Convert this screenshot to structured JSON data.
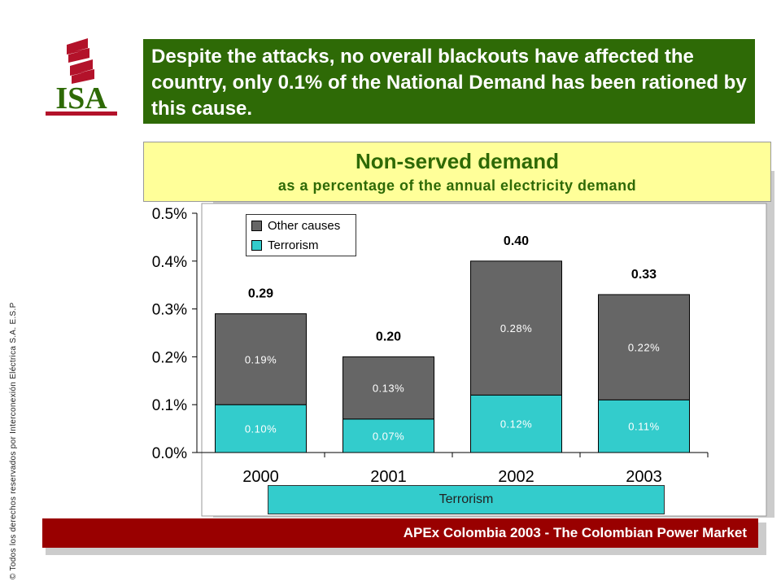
{
  "copyright": "© Todos los derechos reservados por Interconexión Eléctrica S.A. E.S.P",
  "logo": {
    "text": "ISA",
    "colors": {
      "red": "#b3122a",
      "green": "#2e6a06"
    }
  },
  "headline": "Despite the attacks, no overall blackouts have affected the country, only 0.1% of the National Demand has been rationed by this cause.",
  "footer": "APEx Colombia 2003 - The Colombian Power Market",
  "terrorism_band_label": "Terrorism",
  "colors": {
    "headline_bg": "#2e6a06",
    "subtitle_bg": "#ffff99",
    "footer_bg": "#990000",
    "other_causes": "#666666",
    "terrorism": "#33cccc"
  },
  "chart_data": {
    "type": "bar",
    "stacked": true,
    "title": "Non-served demand",
    "subtitle": "as a percentage of the annual electricity demand",
    "categories": [
      "2000",
      "2001",
      "2002",
      "2003"
    ],
    "series": [
      {
        "name": "Terrorism",
        "values": [
          0.1,
          0.07,
          0.12,
          0.11
        ],
        "labels": [
          "0.10%",
          "0.07%",
          "0.12%",
          "0.11%"
        ],
        "color": "#33cccc"
      },
      {
        "name": "Other causes",
        "values": [
          0.19,
          0.13,
          0.28,
          0.22
        ],
        "labels": [
          "0.19%",
          "0.13%",
          "0.28%",
          "0.22%"
        ],
        "color": "#666666"
      }
    ],
    "totals": [
      "0.29",
      "0.20",
      "0.40",
      "0.33"
    ],
    "ylim": [
      0,
      0.5
    ],
    "yticks": [
      0,
      0.1,
      0.2,
      0.3,
      0.4,
      0.5
    ],
    "ytick_labels": [
      "0.0%",
      "0.1%",
      "0.2%",
      "0.3%",
      "0.4%",
      "0.5%"
    ],
    "legend": {
      "placement": "top-left",
      "entries": [
        "Other causes",
        "Terrorism"
      ]
    },
    "grid": false
  }
}
